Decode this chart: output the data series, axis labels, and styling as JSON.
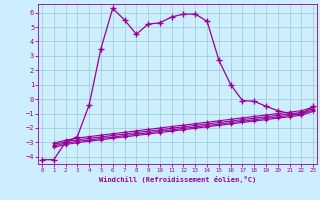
{
  "xlabel": "Windchill (Refroidissement éolien,°C)",
  "x_ticks": [
    0,
    1,
    2,
    3,
    4,
    5,
    6,
    7,
    8,
    9,
    10,
    11,
    12,
    13,
    14,
    15,
    16,
    17,
    18,
    19,
    20,
    21,
    22,
    23
  ],
  "y_ticks": [
    -4,
    -3,
    -2,
    -1,
    0,
    1,
    2,
    3,
    4,
    5,
    6
  ],
  "ylim": [
    -4.5,
    6.6
  ],
  "xlim": [
    -0.3,
    23.3
  ],
  "background_color": "#cceeff",
  "line_color": "#990099",
  "grid_color": "#99cccc",
  "series": {
    "main": {
      "x": [
        0,
        1,
        2,
        3,
        4,
        5,
        6,
        7,
        8,
        9,
        10,
        11,
        12,
        13,
        14,
        15,
        16,
        17,
        18,
        19,
        20,
        21,
        22,
        23
      ],
      "y": [
        -4.2,
        -4.2,
        -3.0,
        -2.6,
        -0.4,
        3.5,
        6.3,
        5.5,
        4.5,
        5.2,
        5.3,
        5.7,
        5.9,
        5.9,
        5.4,
        2.7,
        1.0,
        -0.1,
        -0.15,
        -0.5,
        -0.8,
        -1.0,
        -1.05,
        -0.5
      ]
    },
    "flat1": {
      "x": [
        1,
        2,
        3,
        4,
        5,
        6,
        7,
        8,
        9,
        10,
        11,
        12,
        13,
        14,
        15,
        16,
        17,
        18,
        19,
        20,
        21,
        22,
        23
      ],
      "y": [
        -3.05,
        -2.85,
        -2.7,
        -2.6,
        -2.5,
        -2.4,
        -2.3,
        -2.2,
        -2.1,
        -2.0,
        -1.9,
        -1.8,
        -1.7,
        -1.6,
        -1.5,
        -1.4,
        -1.3,
        -1.2,
        -1.1,
        -1.0,
        -0.9,
        -0.8,
        -0.55
      ]
    },
    "flat2": {
      "x": [
        1,
        2,
        3,
        4,
        5,
        6,
        7,
        8,
        9,
        10,
        11,
        12,
        13,
        14,
        15,
        16,
        17,
        18,
        19,
        20,
        21,
        22,
        23
      ],
      "y": [
        -3.15,
        -2.95,
        -2.82,
        -2.72,
        -2.62,
        -2.52,
        -2.42,
        -2.32,
        -2.22,
        -2.12,
        -2.02,
        -1.92,
        -1.82,
        -1.72,
        -1.62,
        -1.52,
        -1.42,
        -1.32,
        -1.22,
        -1.12,
        -1.02,
        -0.92,
        -0.65
      ]
    },
    "flat3": {
      "x": [
        1,
        2,
        3,
        4,
        5,
        6,
        7,
        8,
        9,
        10,
        11,
        12,
        13,
        14,
        15,
        16,
        17,
        18,
        19,
        20,
        21,
        22,
        23
      ],
      "y": [
        -3.25,
        -3.05,
        -2.93,
        -2.83,
        -2.73,
        -2.63,
        -2.53,
        -2.43,
        -2.33,
        -2.23,
        -2.13,
        -2.03,
        -1.93,
        -1.83,
        -1.73,
        -1.63,
        -1.53,
        -1.43,
        -1.33,
        -1.23,
        -1.13,
        -1.03,
        -0.75
      ]
    },
    "flat4": {
      "x": [
        1,
        2,
        3,
        4,
        5,
        6,
        7,
        8,
        9,
        10,
        11,
        12,
        13,
        14,
        15,
        16,
        17,
        18,
        19,
        20,
        21,
        22,
        23
      ],
      "y": [
        -3.35,
        -3.15,
        -3.02,
        -2.92,
        -2.82,
        -2.72,
        -2.62,
        -2.52,
        -2.42,
        -2.32,
        -2.22,
        -2.12,
        -2.02,
        -1.92,
        -1.82,
        -1.72,
        -1.62,
        -1.52,
        -1.42,
        -1.32,
        -1.22,
        -1.12,
        -0.85
      ]
    }
  }
}
